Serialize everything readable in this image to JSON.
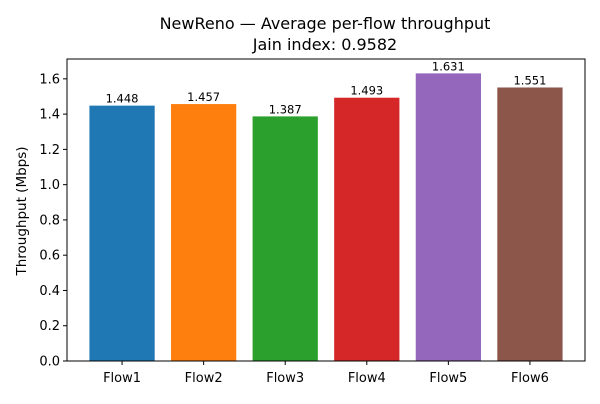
{
  "chart_data": {
    "type": "bar",
    "title": "NewReno — Average per-flow throughput",
    "subtitle": "Jain index: 0.9582",
    "xlabel": "",
    "ylabel": "Throughput (Mbps)",
    "categories": [
      "Flow1",
      "Flow2",
      "Flow3",
      "Flow4",
      "Flow5",
      "Flow6"
    ],
    "values": [
      1.448,
      1.457,
      1.387,
      1.493,
      1.631,
      1.551
    ],
    "data_labels": [
      "1.448",
      "1.457",
      "1.387",
      "1.493",
      "1.631",
      "1.551"
    ],
    "colors": [
      "#1f77b4",
      "#ff7f0e",
      "#2ca02c",
      "#d62728",
      "#9467bd",
      "#8c564b"
    ],
    "ylim": [
      0,
      1.7125
    ],
    "yticks": [
      0.0,
      0.2,
      0.4,
      0.6,
      0.8,
      1.0,
      1.2,
      1.4,
      1.6
    ],
    "ytick_labels": [
      "0.0",
      "0.2",
      "0.4",
      "0.6",
      "0.8",
      "1.0",
      "1.2",
      "1.4",
      "1.6"
    ],
    "grid": false,
    "legend": "none"
  }
}
